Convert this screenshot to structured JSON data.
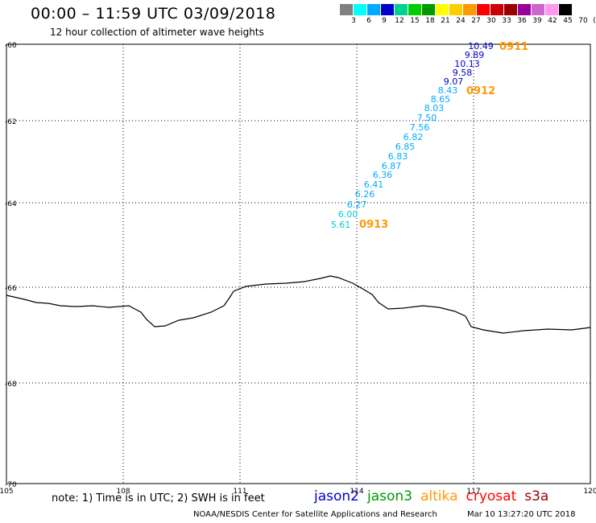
{
  "header": {
    "title": "00:00 – 11:59 UTC 03/09/2018",
    "subtitle": "12 hour collection of altimeter wave heights"
  },
  "legend": {
    "colors": [
      "#808080",
      "#00ffff",
      "#00aaff",
      "#0000cc",
      "#00d090",
      "#00cc00",
      "#009900",
      "#ffff00",
      "#ffcc00",
      "#ff9900",
      "#ff0000",
      "#cc0000",
      "#990000",
      "#990099",
      "#cc66cc",
      "#ff99ee",
      "#000000"
    ],
    "labels": [
      "3",
      "6",
      "9",
      "12",
      "15",
      "18",
      "21",
      "24",
      "27",
      "30",
      "33",
      "36",
      "39",
      "42",
      "45",
      "70",
      "(ft)"
    ]
  },
  "map": {
    "lon_range": [
      105,
      120
    ],
    "lat_range": [
      -70,
      -60
    ],
    "lon_ticks": [
      "105",
      "108",
      "111",
      "114",
      "117",
      "120"
    ],
    "lat_ticks": [
      "-60",
      "-62",
      "-64",
      "-66",
      "-68",
      "-70"
    ],
    "grid": "dotted"
  },
  "observations": [
    {
      "value": "10.49",
      "color": "#0000cc"
    },
    {
      "value": "9.89",
      "color": "#0000cc"
    },
    {
      "value": "10.13",
      "color": "#0000cc"
    },
    {
      "value": "9.58",
      "color": "#0000cc"
    },
    {
      "value": "9.07",
      "color": "#0000cc"
    },
    {
      "value": "8.43",
      "color": "#00aaff"
    },
    {
      "value": "8.65",
      "color": "#00aaff"
    },
    {
      "value": "8.03",
      "color": "#00aaff"
    },
    {
      "value": "7.50",
      "color": "#00aaff"
    },
    {
      "value": "7.56",
      "color": "#00aaff"
    },
    {
      "value": "6.82",
      "color": "#00aaff"
    },
    {
      "value": "6.85",
      "color": "#00aaff"
    },
    {
      "value": "6.83",
      "color": "#00aaff"
    },
    {
      "value": "6.87",
      "color": "#00aaff"
    },
    {
      "value": "6.36",
      "color": "#00aaff"
    },
    {
      "value": "6.41",
      "color": "#00aaff"
    },
    {
      "value": "6.26",
      "color": "#00aaff"
    },
    {
      "value": "6.27",
      "color": "#00aaff"
    },
    {
      "value": "6.00",
      "color": "#00cccc"
    },
    {
      "value": "5.61",
      "color": "#00cccc"
    }
  ],
  "time_labels": [
    {
      "text": "0911",
      "color": "#ff9900"
    },
    {
      "text": "0912",
      "color": "#ff9900"
    },
    {
      "text": "0913",
      "color": "#ff9900"
    }
  ],
  "footer": {
    "note": "note: 1) Time is in UTC; 2) SWH is in feet",
    "missions": [
      {
        "name": "jason2",
        "color": "#0000cc"
      },
      {
        "name": "jason3",
        "color": "#009900"
      },
      {
        "name": "altika",
        "color": "#ff9900"
      },
      {
        "name": "cryosat",
        "color": "#ff0000"
      },
      {
        "name": "s3a",
        "color": "#990000"
      }
    ],
    "credit": "NOAA/NESDIS Center for Satellite Applications and Research",
    "timestamp": "Mar 10 13:27:20 UTC 2018"
  }
}
